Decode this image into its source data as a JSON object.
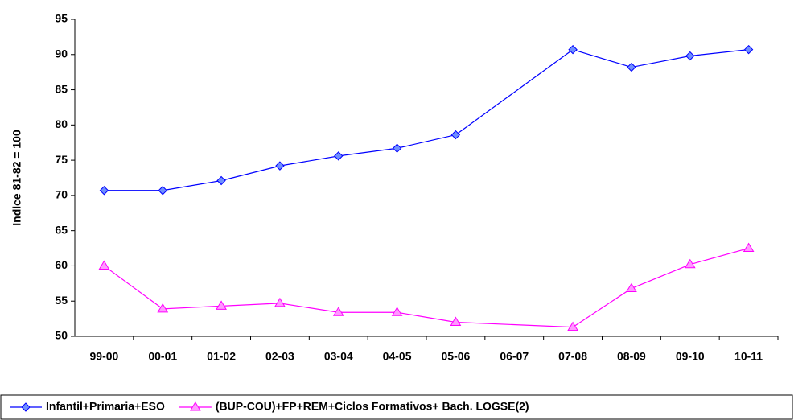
{
  "chart_data": {
    "type": "line",
    "y_label": "Indice 81-82 = 100",
    "categories": [
      "99-00",
      "00-01",
      "01-02",
      "02-03",
      "03-04",
      "04-05",
      "05-06",
      "06-07",
      "07-08",
      "08-09",
      "09-10",
      "10-11"
    ],
    "series": [
      {
        "name": "Infantil+Primaria+ESO",
        "color": "#0000ff",
        "marker": "diamond",
        "marker_color": "#6f8fff",
        "values": [
          70.7,
          70.7,
          72.1,
          74.2,
          75.6,
          76.7,
          78.6,
          null,
          90.7,
          88.2,
          89.8,
          90.7
        ]
      },
      {
        "name": "(BUP-COU)+FP+REM+Ciclos Formativos+ Bach. LOGSE(2)",
        "color": "#ff00ff",
        "marker": "triangle",
        "marker_color": "#ff99ff",
        "values": [
          60.0,
          53.9,
          54.3,
          54.7,
          53.4,
          53.4,
          52.0,
          null,
          51.3,
          56.8,
          60.2,
          62.5
        ]
      }
    ],
    "ylim": [
      50,
      95
    ],
    "yticks": [
      50,
      55,
      60,
      65,
      70,
      75,
      80,
      85,
      90,
      95
    ],
    "grid": false,
    "legend": "bottom"
  }
}
